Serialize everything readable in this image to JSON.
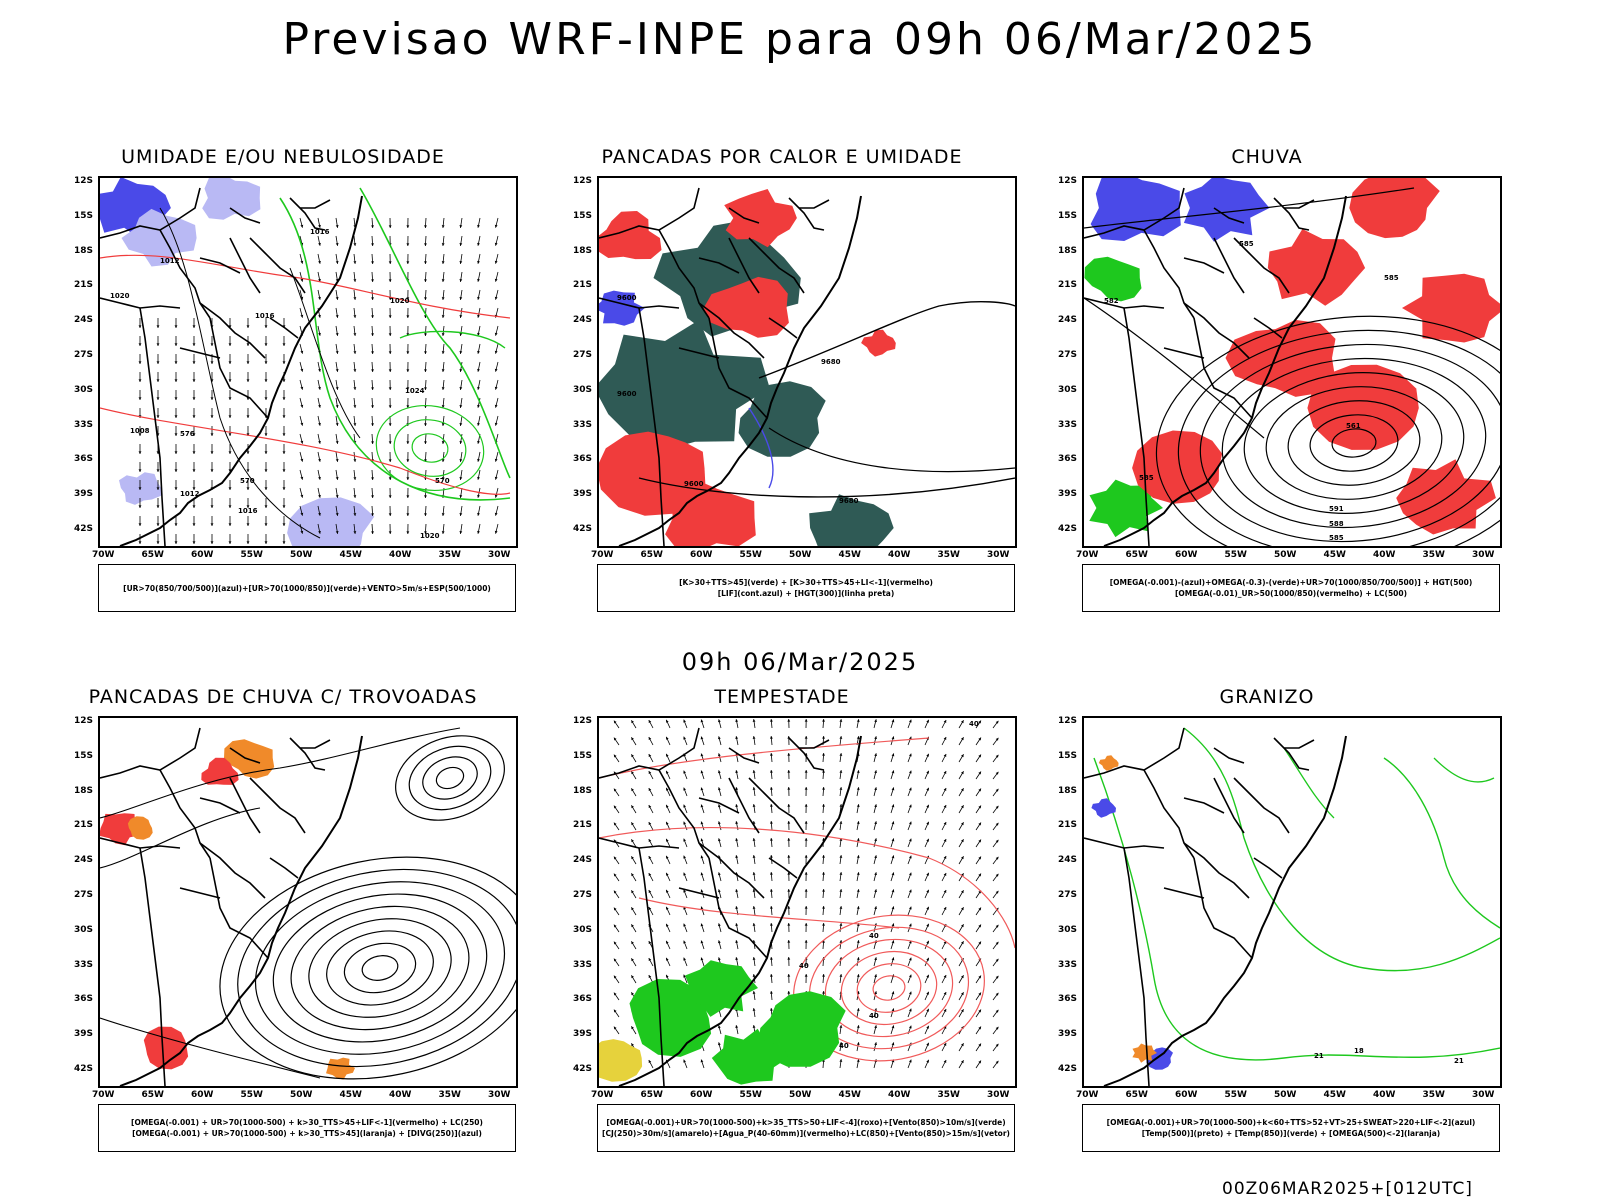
{
  "title": "Previsao WRF-INPE  para 09h 06/Mar/2025",
  "mid_date": "09h 06/Mar/2025",
  "footer": "00Z06MAR2025+[012UTC]",
  "lat_labels": [
    "12S",
    "15S",
    "18S",
    "21S",
    "24S",
    "27S",
    "30S",
    "33S",
    "36S",
    "39S",
    "42S"
  ],
  "lon_labels": [
    "70W",
    "65W",
    "60W",
    "55W",
    "50W",
    "45W",
    "40W",
    "35W",
    "30W"
  ],
  "panels": [
    {
      "title": "UMIDADE E/OU NEBULOSIDADE",
      "legend": [
        "[UR>70(850/700/500)](azul)+[UR>70(1000/850)](verde)+VENTO>5m/s+ESP(500/1000)"
      ],
      "labels": [
        "1016",
        "1012",
        "1020",
        "1016",
        "1020",
        "1024",
        "1008",
        "1012",
        "1016",
        "576",
        "570",
        "570",
        "1020"
      ]
    },
    {
      "title": "PANCADAS POR CALOR E UMIDADE",
      "legend": [
        "[K>30+TTS>45](verde) + [K>30+TTS>45+LI<-1](vermelho)",
        "[LIF](cont.azul) + [HGT(300)](linha preta)"
      ],
      "labels": [
        "9600",
        "9680",
        "9600",
        "9680",
        "9600"
      ]
    },
    {
      "title": "CHUVA",
      "legend": [
        "[OMEGA(-0.001)-(azul)+OMEGA(-0.3)-(verde)+UR>70(1000/850/700/500)] + HGT(500)",
        "[OMEGA(-0.01)_UR>50(1000/850)(vermelho) + LC(500)"
      ],
      "labels": [
        "585",
        "582",
        "585",
        "561",
        "585",
        "591",
        "588",
        "585"
      ]
    },
    {
      "title": "PANCADAS DE CHUVA C/ TROVOADAS",
      "legend": [
        "[OMEGA(-0.001) + UR>70(1000-500) + k>30_TTS>45+LIF<-1](vermelho) + LC(250)",
        "[OMEGA(-0.001) + UR>70(1000-500) + k>30_TTS>45](laranja) + [DIVG(250)](azul)"
      ],
      "labels": []
    },
    {
      "title": "TEMPESTADE",
      "legend": [
        "[OMEGA(-0.001)+UR>70(1000-500)+k>35_TTS>50+LIF<-4](roxo)+[Vento(850)>10m/s](verde)",
        "[CJ(250)>30m/s](amarelo)+[Agua_P(40-60mm)](vermelho)+LC(850)+[Vento(850)>15m/s](vetor)"
      ],
      "labels": [
        "40",
        "40",
        "40",
        "40",
        "40"
      ]
    },
    {
      "title": "GRANIZO",
      "legend": [
        "[OMEGA(-0.001)+UR>70(1000-500)+k<60+TTS>52+VT>25+SWEAT>220+LIF<-2](azul)",
        "[Temp(500)](preto) + [Temp(850)](verde) + [OMEGA(500)<-2](laranja)"
      ],
      "labels": [
        "21",
        "18",
        "21"
      ]
    }
  ],
  "colors": {
    "blue": "#4a4ae8",
    "light_blue": "#b9b9f4",
    "green": "#1ec81e",
    "red": "#f03c3c",
    "dark_teal": "#2f5a55",
    "orange": "#f08a2a",
    "yellow": "#e6d23c",
    "contour_red": "#f05a5a"
  }
}
